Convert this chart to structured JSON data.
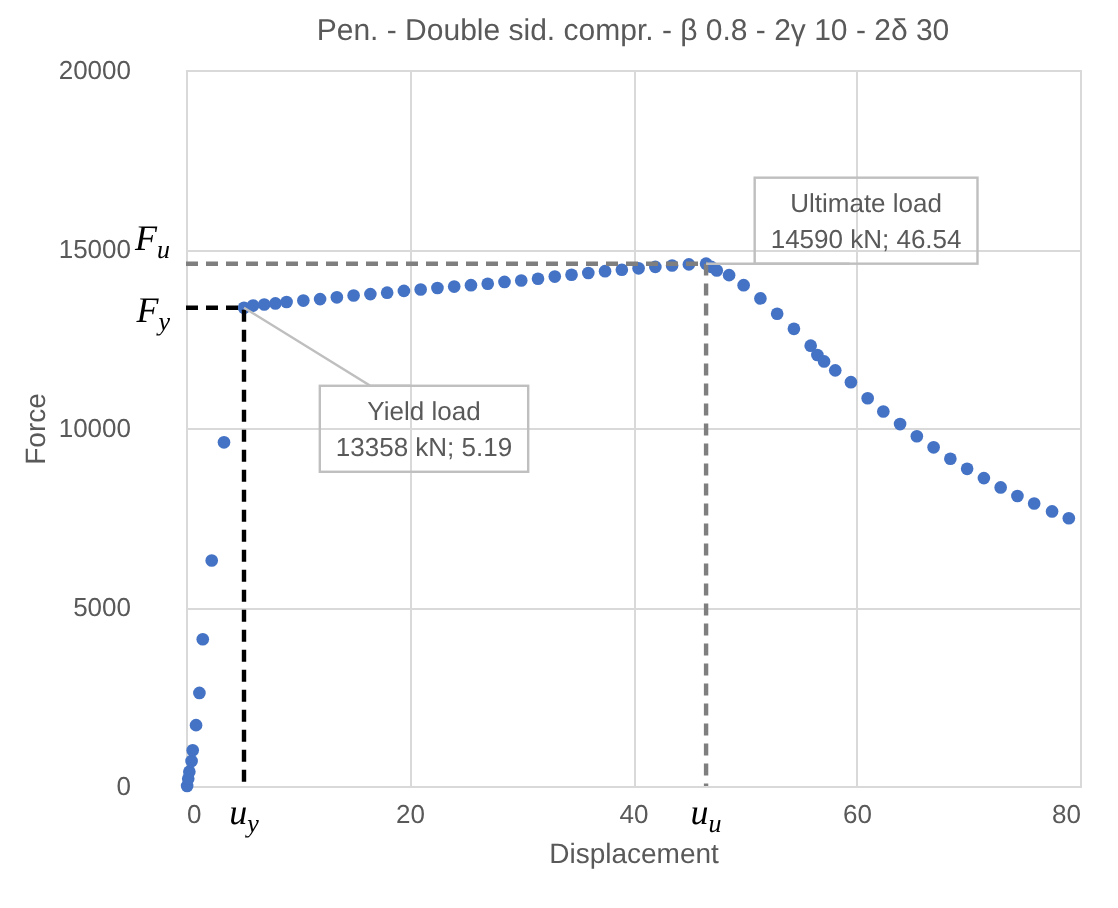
{
  "chart_data": {
    "type": "scatter",
    "title": "Pen. - Double sid. compr. - β 0.8 - 2γ 10 - 2δ 30",
    "xlabel": "Displacement",
    "ylabel": "Force",
    "xlim": [
      0,
      80
    ],
    "xticks": [
      0,
      20,
      40,
      60,
      80
    ],
    "ylim": [
      0,
      20000
    ],
    "yticks": [
      0,
      5000,
      10000,
      15000,
      20000
    ],
    "grid": true,
    "marker": "circle",
    "series": [
      {
        "color": "#4472c4",
        "x": [
          0.1,
          0.2,
          0.3,
          0.5,
          0.6,
          0.9,
          1.2,
          1.5,
          2.3,
          3.4,
          5.19,
          6,
          7,
          8,
          9,
          10.5,
          12,
          13.5,
          15,
          16.5,
          18,
          19.5,
          21,
          22.5,
          24,
          25.5,
          27,
          28.5,
          30,
          31.5,
          33,
          34.5,
          36,
          37.5,
          39,
          40.5,
          42,
          43.5,
          45,
          46.54,
          47,
          47.5,
          48.6,
          49.9,
          51.4,
          52.9,
          54.4,
          55.9,
          56.5,
          57.1,
          58.1,
          59.5,
          61,
          62.4,
          63.9,
          65.4,
          66.9,
          68.4,
          69.9,
          71.4,
          72.9,
          74.4,
          75.9,
          77.5,
          79
        ],
        "values": [
          0,
          200,
          400,
          700,
          1000,
          1700,
          2600,
          4100,
          6300,
          9600,
          13358,
          13420,
          13450,
          13480,
          13520,
          13560,
          13600,
          13650,
          13700,
          13740,
          13780,
          13830,
          13870,
          13910,
          13950,
          13990,
          14030,
          14080,
          14120,
          14170,
          14230,
          14280,
          14330,
          14380,
          14420,
          14460,
          14500,
          14540,
          14570,
          14590,
          14500,
          14400,
          14270,
          13990,
          13620,
          13190,
          12770,
          12300,
          12040,
          11860,
          11610,
          11280,
          10830,
          10460,
          10110,
          9770,
          9460,
          9140,
          8860,
          8600,
          8340,
          8100,
          7890,
          7670,
          7480
        ]
      },
      {
        "type": "line",
        "color": "#000000",
        "line_style": "dashed",
        "marker": "none",
        "x": [
          0,
          5.19,
          5.19
        ],
        "values": [
          13358,
          13358,
          0
        ]
      },
      {
        "type": "line",
        "color": "#7f7f7f",
        "line_style": "dashed",
        "marker": "none",
        "x": [
          0,
          46.54,
          46.54
        ],
        "values": [
          14590,
          14590,
          0
        ]
      }
    ],
    "annotations": [
      {
        "text": "Yield load\n13358 kN; 5.19",
        "x": 5.19,
        "y": 13358
      },
      {
        "text": "Ultimate load\n14590 kN; 46.54",
        "x": 46.54,
        "y": 14590
      },
      {
        "text": "F$_{y}$",
        "x": 0,
        "y": 13358
      },
      {
        "text": "F$_{u}$",
        "x": 0,
        "y": 14590
      },
      {
        "text": "u$_{y}$",
        "x": 5.19,
        "y": 0
      },
      {
        "text": "u$_{u}$",
        "x": 46.54,
        "y": 0
      }
    ]
  }
}
